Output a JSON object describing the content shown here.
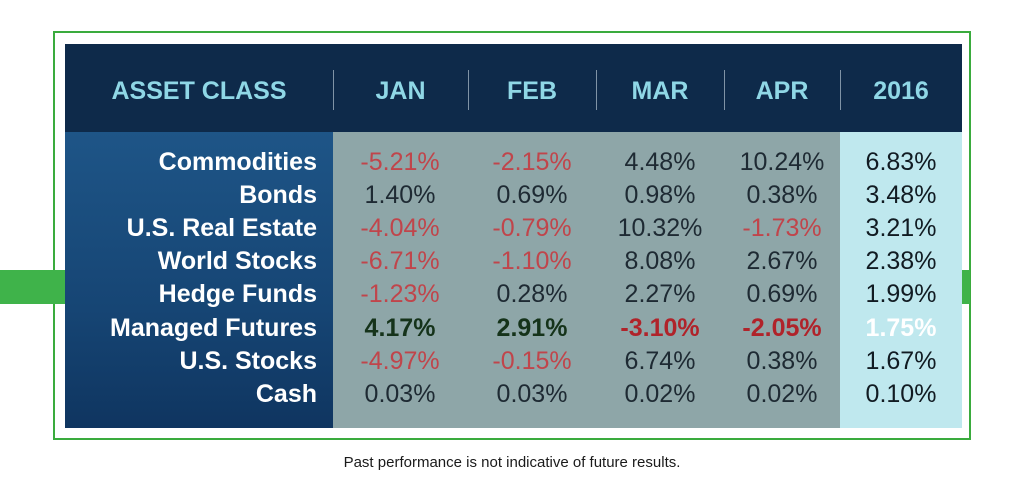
{
  "chart_data": {
    "type": "table",
    "columns": [
      "ASSET CLASS",
      "JAN",
      "FEB",
      "MAR",
      "APR",
      "2016"
    ],
    "highlight_row": "Managed Futures",
    "rows": [
      {
        "label": "Commodities",
        "values": [
          "-5.21%",
          "-2.15%",
          "4.48%",
          "10.24%",
          "6.83%"
        ]
      },
      {
        "label": "Bonds",
        "values": [
          "1.40%",
          "0.69%",
          "0.98%",
          "0.38%",
          "3.48%"
        ]
      },
      {
        "label": "U.S. Real Estate",
        "values": [
          "-4.04%",
          "-0.79%",
          "10.32%",
          "-1.73%",
          "3.21%"
        ]
      },
      {
        "label": "World Stocks",
        "values": [
          "-6.71%",
          "-1.10%",
          "8.08%",
          "2.67%",
          "2.38%"
        ]
      },
      {
        "label": "Hedge Funds",
        "values": [
          "-1.23%",
          "0.28%",
          "2.27%",
          "0.69%",
          "1.99%"
        ]
      },
      {
        "label": "Managed Futures",
        "values": [
          "4.17%",
          "2.91%",
          "-3.10%",
          "-2.05%",
          "1.75%"
        ]
      },
      {
        "label": "U.S. Stocks",
        "values": [
          "-4.97%",
          "-0.15%",
          "6.74%",
          "0.38%",
          "1.67%"
        ]
      },
      {
        "label": "Cash",
        "values": [
          "0.03%",
          "0.03%",
          "0.02%",
          "0.02%",
          "0.10%"
        ]
      }
    ]
  },
  "footnote": "Past performance is not indicative of future results.",
  "colors": {
    "header_bg": "#0e2a4a",
    "header_text": "#8fd7e6",
    "negative": "#c0454b",
    "highlight": "#3fb34a",
    "border": "#3aab3d"
  }
}
